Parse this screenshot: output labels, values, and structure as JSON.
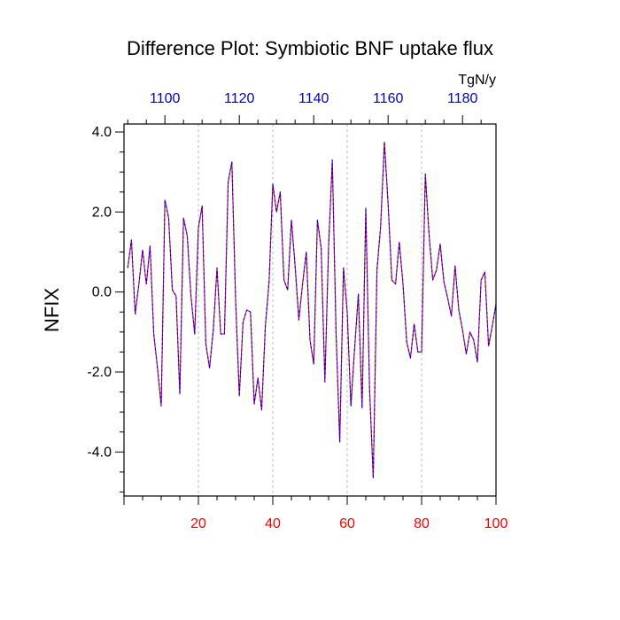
{
  "chart_data": {
    "type": "line",
    "title": "Difference Plot: Symbiotic BNF uptake flux",
    "units_label": "TgN/y",
    "ylabel": "NFIX",
    "xlabel": "",
    "xlim": [
      0,
      100
    ],
    "ylim": [
      -5.1,
      4.2
    ],
    "y_ticks": [
      4.0,
      2.0,
      0.0,
      -2.0,
      -4.0
    ],
    "y_tick_labels": [
      "4.0",
      "2.0",
      "0.0",
      "-2.0",
      "-4.0"
    ],
    "x_ticks_bottom": [
      20,
      40,
      60,
      80,
      100
    ],
    "x_tick_labels_bottom": [
      "20",
      "40",
      "60",
      "80",
      "100"
    ],
    "x_ticks_top": [
      1100,
      1120,
      1140,
      1160,
      1180
    ],
    "x_tick_labels_top": [
      "1100",
      "1120",
      "1140",
      "1160",
      "1180"
    ],
    "x_top_offset": 1089,
    "grid_x": true,
    "colors": {
      "line_primary": "#ff0000",
      "line_secondary": "#0000ff",
      "bottom_ticks": "#ff0000",
      "top_ticks": "#0000cc",
      "grid": "#aaaaaa"
    },
    "series": [
      {
        "x": [
          1,
          2,
          3,
          4,
          5,
          6,
          7,
          8,
          9,
          10,
          11,
          12,
          13,
          14,
          15,
          16,
          17,
          18,
          19,
          20,
          21,
          22,
          23,
          24,
          25,
          26,
          27,
          28,
          29,
          30,
          31,
          32,
          33,
          34,
          35,
          36,
          37,
          38,
          39,
          40,
          41,
          42,
          43,
          44,
          45,
          46,
          47,
          48,
          49,
          50,
          51,
          52,
          53,
          54,
          55,
          56,
          57,
          58,
          59,
          60,
          61,
          62,
          63,
          64,
          65,
          66,
          67,
          68,
          69,
          70,
          71,
          72,
          73,
          74,
          75,
          76,
          77,
          78,
          79,
          80,
          81,
          82,
          83,
          84,
          85,
          86,
          87,
          88,
          89,
          90,
          91,
          92,
          93,
          94,
          95,
          96,
          97,
          98,
          99,
          100
        ],
        "values": [
          0.6,
          1.3,
          -0.55,
          0.2,
          1.05,
          0.2,
          1.15,
          -1.05,
          -1.9,
          -2.85,
          2.3,
          1.85,
          0.05,
          -0.1,
          -2.55,
          1.85,
          1.4,
          -0.1,
          -1.05,
          1.6,
          2.15,
          -1.3,
          -1.9,
          -0.95,
          0.6,
          -1.05,
          -1.05,
          2.75,
          3.25,
          -0.2,
          -2.6,
          -0.75,
          -0.45,
          -0.5,
          -2.8,
          -2.15,
          -2.95,
          -0.85,
          0.25,
          2.7,
          2.0,
          2.5,
          0.3,
          0.05,
          1.8,
          0.65,
          -0.7,
          0.2,
          1.0,
          -1.2,
          -1.8,
          1.8,
          1.1,
          -2.25,
          1.15,
          3.3,
          -1.0,
          -3.75,
          0.6,
          -0.5,
          -2.85,
          -1.4,
          -0.05,
          -2.9,
          2.1,
          -2.4,
          -4.65,
          0.55,
          1.65,
          3.75,
          2.2,
          0.3,
          0.2,
          1.25,
          0.2,
          -1.25,
          -1.65,
          -0.8,
          -1.5,
          -1.5,
          2.95,
          1.45,
          0.3,
          0.55,
          1.2,
          0.25,
          -0.15,
          -0.6,
          0.65,
          -0.45,
          -0.95,
          -1.55,
          -1.0,
          -1.2,
          -1.75,
          0.3,
          0.5,
          -1.35,
          -0.85,
          -0.3
        ]
      }
    ]
  }
}
